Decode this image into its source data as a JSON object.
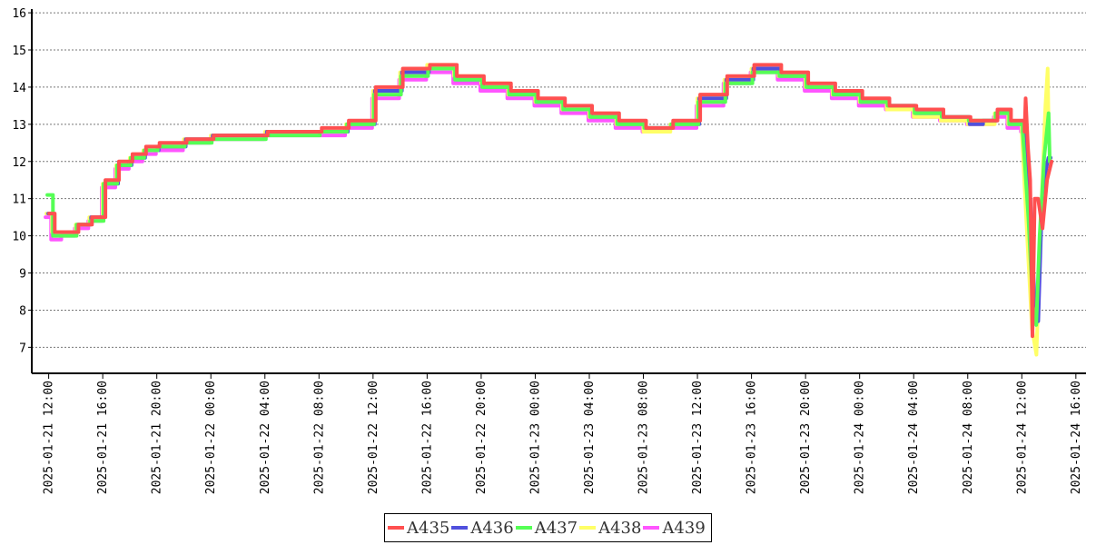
{
  "chart_data": {
    "type": "line",
    "title": "",
    "xlabel": "",
    "ylabel": "",
    "ylim": [
      6.3,
      16.1
    ],
    "xlim": [
      "2025-01-21 10:45",
      "2025-01-24 16:45"
    ],
    "y_ticks": [
      "7",
      "8",
      "9",
      "10",
      "11",
      "12",
      "13",
      "14",
      "15",
      "16"
    ],
    "x_ticks": [
      "2025-01-21 12:00",
      "2025-01-21 16:00",
      "2025-01-21 20:00",
      "2025-01-22 00:00",
      "2025-01-22 04:00",
      "2025-01-22 08:00",
      "2025-01-22 12:00",
      "2025-01-22 16:00",
      "2025-01-22 20:00",
      "2025-01-23 00:00",
      "2025-01-23 04:00",
      "2025-01-23 08:00",
      "2025-01-23 12:00",
      "2025-01-23 16:00",
      "2025-01-23 20:00",
      "2025-01-24 00:00",
      "2025-01-24 04:00",
      "2025-01-24 08:00",
      "2025-01-24 12:00",
      "2025-01-24 16:00"
    ],
    "grid": "horizontal dotted",
    "legend_position": "bottom-center",
    "base_x": [
      "2025-01-21 11:50",
      "2025-01-21 12:15",
      "2025-01-21 13:00",
      "2025-01-21 14:00",
      "2025-01-21 15:00",
      "2025-01-21 16:00",
      "2025-01-21 17:00",
      "2025-01-21 18:00",
      "2025-01-21 19:00",
      "2025-01-21 20:00",
      "2025-01-21 22:00",
      "2025-01-22 00:00",
      "2025-01-22 04:00",
      "2025-01-22 08:00",
      "2025-01-22 10:00",
      "2025-01-22 12:00",
      "2025-01-22 14:00",
      "2025-01-22 16:00",
      "2025-01-22 18:00",
      "2025-01-22 20:00",
      "2025-01-22 22:00",
      "2025-01-23 00:00",
      "2025-01-23 02:00",
      "2025-01-23 04:00",
      "2025-01-23 06:00",
      "2025-01-23 08:00",
      "2025-01-23 10:00",
      "2025-01-23 12:00",
      "2025-01-23 14:00",
      "2025-01-23 16:00",
      "2025-01-23 18:00",
      "2025-01-23 20:00",
      "2025-01-23 22:00",
      "2025-01-24 00:00",
      "2025-01-24 02:00",
      "2025-01-24 04:00",
      "2025-01-24 06:00",
      "2025-01-24 08:00",
      "2025-01-24 09:00",
      "2025-01-24 10:00",
      "2025-01-24 11:00",
      "2025-01-24 12:00"
    ],
    "series": [
      {
        "name": "A435",
        "color": "#ff5050",
        "values": [
          10.6,
          10.1,
          10.1,
          10.3,
          10.5,
          11.5,
          12.0,
          12.2,
          12.4,
          12.5,
          12.6,
          12.7,
          12.8,
          12.9,
          13.1,
          14.0,
          14.5,
          14.6,
          14.3,
          14.1,
          13.9,
          13.7,
          13.5,
          13.3,
          13.1,
          12.9,
          13.1,
          13.8,
          14.3,
          14.6,
          14.4,
          14.1,
          13.9,
          13.7,
          13.5,
          13.4,
          13.2,
          13.1,
          13.1,
          13.4,
          13.1,
          12.9
        ],
        "tail_x": [
          "2025-01-24 12:00",
          "2025-01-24 12:05",
          "2025-01-24 12:15",
          "2025-01-24 12:25",
          "2025-01-24 12:35",
          "2025-01-24 12:45",
          "2025-01-24 13:00",
          "2025-01-24 13:20",
          "2025-01-24 13:40",
          "2025-01-24 14:00"
        ],
        "tail_values": [
          12.8,
          13.7,
          12.4,
          11.5,
          7.3,
          11.0,
          11.0,
          10.2,
          11.5,
          12.0
        ]
      },
      {
        "name": "A436",
        "color": "#5050dd",
        "values": [
          10.6,
          10.1,
          10.1,
          10.3,
          10.5,
          11.4,
          11.9,
          12.1,
          12.3,
          12.4,
          12.6,
          12.7,
          12.8,
          12.8,
          13.0,
          13.9,
          14.4,
          14.5,
          14.2,
          14.0,
          13.8,
          13.6,
          13.4,
          13.2,
          13.0,
          12.9,
          13.0,
          13.7,
          14.2,
          14.5,
          14.3,
          14.0,
          13.8,
          13.6,
          13.5,
          13.3,
          13.2,
          13.0,
          13.1,
          13.3,
          13.0,
          12.8
        ],
        "tail_x": [
          "2025-01-24 12:00",
          "2025-01-24 12:30",
          "2025-01-24 12:50",
          "2025-01-24 13:05",
          "2025-01-24 13:20",
          "2025-01-24 13:40",
          "2025-01-24 13:50",
          "2025-01-24 14:00"
        ],
        "tail_values": [
          12.8,
          11.0,
          8.0,
          7.7,
          10.6,
          11.8,
          12.1,
          12.1
        ]
      },
      {
        "name": "A437",
        "color": "#55ff55",
        "values": [
          11.1,
          10.0,
          10.0,
          10.3,
          10.4,
          11.4,
          11.9,
          12.1,
          12.3,
          12.4,
          12.5,
          12.6,
          12.7,
          12.8,
          13.0,
          13.8,
          14.3,
          14.5,
          14.2,
          14.0,
          13.8,
          13.6,
          13.4,
          13.2,
          13.0,
          12.9,
          13.0,
          13.6,
          14.1,
          14.4,
          14.3,
          14.0,
          13.8,
          13.6,
          13.5,
          13.3,
          13.2,
          13.1,
          13.1,
          13.3,
          13.0,
          12.8
        ],
        "tail_x": [
          "2025-01-24 12:00",
          "2025-01-24 12:25",
          "2025-01-24 12:45",
          "2025-01-24 13:00",
          "2025-01-24 13:15",
          "2025-01-24 13:35",
          "2025-01-24 13:55",
          "2025-01-24 14:00"
        ],
        "tail_values": [
          12.8,
          10.5,
          8.1,
          7.6,
          10.0,
          12.1,
          13.3,
          12.0
        ]
      },
      {
        "name": "A438",
        "color": "#ffff66",
        "values": [
          10.6,
          10.1,
          10.1,
          10.3,
          10.5,
          11.4,
          11.9,
          12.1,
          12.3,
          12.4,
          12.6,
          12.7,
          12.8,
          12.8,
          13.0,
          13.9,
          14.4,
          14.6,
          14.3,
          14.1,
          13.8,
          13.6,
          13.4,
          13.2,
          13.0,
          12.8,
          13.0,
          13.7,
          14.2,
          14.5,
          14.3,
          14.0,
          13.8,
          13.6,
          13.4,
          13.2,
          13.1,
          13.0,
          13.0,
          13.3,
          13.0,
          12.9
        ],
        "tail_x": [
          "2025-01-24 12:00",
          "2025-01-24 12:20",
          "2025-01-24 12:45",
          "2025-01-24 13:05",
          "2025-01-24 13:25",
          "2025-01-24 13:45",
          "2025-01-24 13:55",
          "2025-01-24 14:00"
        ],
        "tail_values": [
          12.8,
          10.4,
          7.5,
          6.8,
          10.5,
          13.5,
          14.5,
          12.5
        ]
      },
      {
        "name": "A439",
        "color": "#ff55ff",
        "values": [
          10.5,
          9.9,
          10.0,
          10.2,
          10.4,
          11.3,
          11.8,
          12.0,
          12.2,
          12.3,
          12.5,
          12.6,
          12.7,
          12.7,
          12.9,
          13.7,
          14.2,
          14.4,
          14.1,
          13.9,
          13.7,
          13.5,
          13.3,
          13.1,
          12.9,
          12.8,
          12.9,
          13.5,
          14.1,
          14.4,
          14.2,
          13.9,
          13.7,
          13.5,
          13.4,
          13.2,
          13.1,
          13.0,
          13.0,
          13.2,
          12.9,
          12.8
        ],
        "tail_x": [],
        "tail_values": []
      }
    ]
  }
}
